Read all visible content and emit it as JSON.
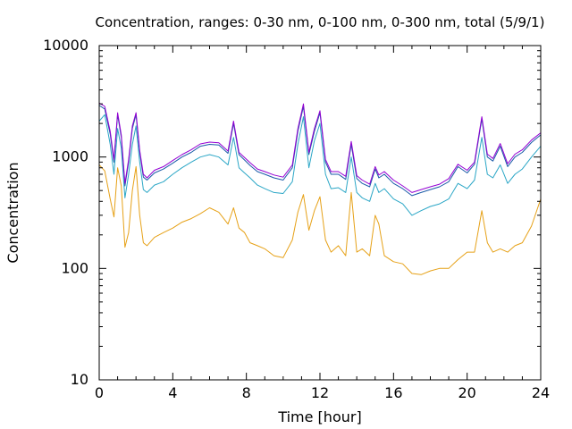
{
  "chart_data": {
    "type": "line",
    "title": "Concentration, ranges: 0-30 nm, 0-100 nm, 0-300 nm, total (5/9/1)",
    "xlabel": "Time [hour]",
    "ylabel": "Concentration",
    "xlim": [
      0,
      24
    ],
    "ylim": [
      10,
      10000
    ],
    "y_scale": "log",
    "grid": false,
    "legend": "none",
    "x_ticks": [
      0,
      4,
      8,
      12,
      16,
      20,
      24
    ],
    "x_tick_labels": [
      "0",
      "4",
      "8",
      "12",
      "16",
      "20",
      "24"
    ],
    "y_ticks": [
      10,
      100,
      1000,
      10000
    ],
    "y_tick_labels": [
      "10",
      "100",
      "1000",
      "10000"
    ],
    "series": [
      {
        "color": "#e6a117",
        "x": [
          0,
          0.3,
          0.6,
          0.8,
          1.0,
          1.2,
          1.4,
          1.6,
          1.8,
          2.0,
          2.2,
          2.4,
          2.6,
          3.0,
          3.5,
          4.0,
          4.5,
          5.0,
          5.5,
          6.0,
          6.5,
          7.0,
          7.3,
          7.6,
          7.9,
          8.2,
          8.6,
          9.0,
          9.5,
          10.0,
          10.5,
          10.8,
          11.1,
          11.4,
          11.7,
          12.0,
          12.3,
          12.6,
          13.0,
          13.4,
          13.7,
          14.0,
          14.3,
          14.7,
          15.0,
          15.2,
          15.5,
          16.0,
          16.5,
          17.0,
          17.5,
          18.0,
          18.5,
          19.0,
          19.5,
          20.0,
          20.4,
          20.8,
          21.1,
          21.4,
          21.8,
          22.2,
          22.6,
          23.0,
          23.5,
          24.0
        ],
        "values": [
          850,
          750,
          420,
          290,
          800,
          550,
          155,
          210,
          500,
          820,
          300,
          170,
          160,
          190,
          210,
          230,
          260,
          280,
          310,
          350,
          320,
          250,
          350,
          230,
          210,
          170,
          160,
          150,
          130,
          125,
          180,
          320,
          460,
          220,
          330,
          440,
          180,
          140,
          160,
          130,
          480,
          140,
          150,
          130,
          300,
          250,
          130,
          115,
          110,
          90,
          88,
          95,
          100,
          100,
          120,
          140,
          140,
          330,
          170,
          140,
          150,
          140,
          160,
          170,
          240,
          420
        ]
      },
      {
        "color": "#2aa6c6",
        "x": [
          0,
          0.3,
          0.6,
          0.8,
          1.0,
          1.2,
          1.4,
          1.6,
          1.8,
          2.0,
          2.2,
          2.4,
          2.6,
          3.0,
          3.5,
          4.0,
          4.5,
          5.0,
          5.5,
          6.0,
          6.5,
          7.0,
          7.3,
          7.6,
          7.9,
          8.2,
          8.6,
          9.0,
          9.5,
          10.0,
          10.5,
          10.8,
          11.1,
          11.4,
          11.7,
          12.0,
          12.3,
          12.6,
          13.0,
          13.4,
          13.7,
          14.0,
          14.3,
          14.7,
          15.0,
          15.2,
          15.5,
          16.0,
          16.5,
          17.0,
          17.5,
          18.0,
          18.5,
          19.0,
          19.5,
          20.0,
          20.4,
          20.8,
          21.1,
          21.4,
          21.8,
          22.2,
          22.6,
          23.0,
          23.5,
          24.0
        ],
        "values": [
          2100,
          2400,
          1300,
          700,
          1800,
          1200,
          430,
          700,
          1300,
          1900,
          900,
          510,
          480,
          560,
          600,
          700,
          800,
          900,
          1000,
          1050,
          1000,
          850,
          1500,
          800,
          720,
          650,
          560,
          520,
          480,
          470,
          600,
          1300,
          2300,
          800,
          1400,
          2000,
          700,
          520,
          530,
          480,
          1000,
          480,
          430,
          400,
          580,
          480,
          520,
          420,
          380,
          300,
          330,
          360,
          380,
          420,
          580,
          520,
          620,
          1500,
          700,
          650,
          850,
          580,
          700,
          780,
          1000,
          1250
        ]
      },
      {
        "color": "#1a5aa8",
        "x": [
          0,
          0.3,
          0.6,
          0.8,
          1.0,
          1.2,
          1.4,
          1.6,
          1.8,
          2.0,
          2.2,
          2.4,
          2.6,
          3.0,
          3.5,
          4.0,
          4.5,
          5.0,
          5.5,
          6.0,
          6.5,
          7.0,
          7.3,
          7.6,
          7.9,
          8.2,
          8.6,
          9.0,
          9.5,
          10.0,
          10.5,
          10.8,
          11.1,
          11.4,
          11.7,
          12.0,
          12.3,
          12.6,
          13.0,
          13.4,
          13.7,
          14.0,
          14.3,
          14.7,
          15.0,
          15.2,
          15.5,
          16.0,
          16.5,
          17.0,
          17.5,
          18.0,
          18.5,
          19.0,
          19.5,
          20.0,
          20.4,
          20.8,
          21.1,
          21.4,
          21.8,
          22.2,
          22.6,
          23.0,
          23.5,
          24.0
        ],
        "values": [
          2900,
          2700,
          1600,
          900,
          2400,
          1500,
          550,
          900,
          1800,
          2400,
          1100,
          660,
          620,
          720,
          780,
          880,
          1000,
          1100,
          1250,
          1300,
          1280,
          1080,
          2000,
          1050,
          940,
          840,
          740,
          700,
          650,
          620,
          800,
          1700,
          2850,
          1050,
          1700,
          2500,
          900,
          700,
          700,
          630,
          1300,
          640,
          580,
          540,
          780,
          650,
          700,
          580,
          520,
          450,
          480,
          510,
          540,
          600,
          820,
          720,
          860,
          2200,
          1000,
          920,
          1250,
          820,
          1000,
          1100,
          1350,
          1580
        ]
      },
      {
        "color": "#9400d3",
        "x": [
          0,
          0.3,
          0.6,
          0.8,
          1.0,
          1.2,
          1.4,
          1.6,
          1.8,
          2.0,
          2.2,
          2.4,
          2.6,
          3.0,
          3.5,
          4.0,
          4.5,
          5.0,
          5.5,
          6.0,
          6.5,
          7.0,
          7.3,
          7.6,
          7.9,
          8.2,
          8.6,
          9.0,
          9.5,
          10.0,
          10.5,
          10.8,
          11.1,
          11.4,
          11.7,
          12.0,
          12.3,
          12.6,
          13.0,
          13.4,
          13.7,
          14.0,
          14.3,
          14.7,
          15.0,
          15.2,
          15.5,
          16.0,
          16.5,
          17.0,
          17.5,
          18.0,
          18.5,
          19.0,
          19.5,
          20.0,
          20.4,
          20.8,
          21.1,
          21.4,
          21.8,
          22.2,
          22.6,
          23.0,
          23.5,
          24.0
        ],
        "values": [
          3050,
          2850,
          1700,
          950,
          2500,
          1580,
          580,
          950,
          1900,
          2500,
          1150,
          700,
          650,
          760,
          820,
          930,
          1050,
          1160,
          1310,
          1360,
          1340,
          1130,
          2100,
          1100,
          990,
          890,
          780,
          740,
          690,
          660,
          850,
          1800,
          3000,
          1100,
          1800,
          2600,
          950,
          740,
          740,
          670,
          1380,
          680,
          620,
          570,
          820,
          690,
          740,
          620,
          550,
          480,
          510,
          540,
          570,
          640,
          860,
          760,
          900,
          2300,
          1060,
          970,
          1320,
          870,
          1060,
          1160,
          1420,
          1650
        ]
      }
    ]
  }
}
